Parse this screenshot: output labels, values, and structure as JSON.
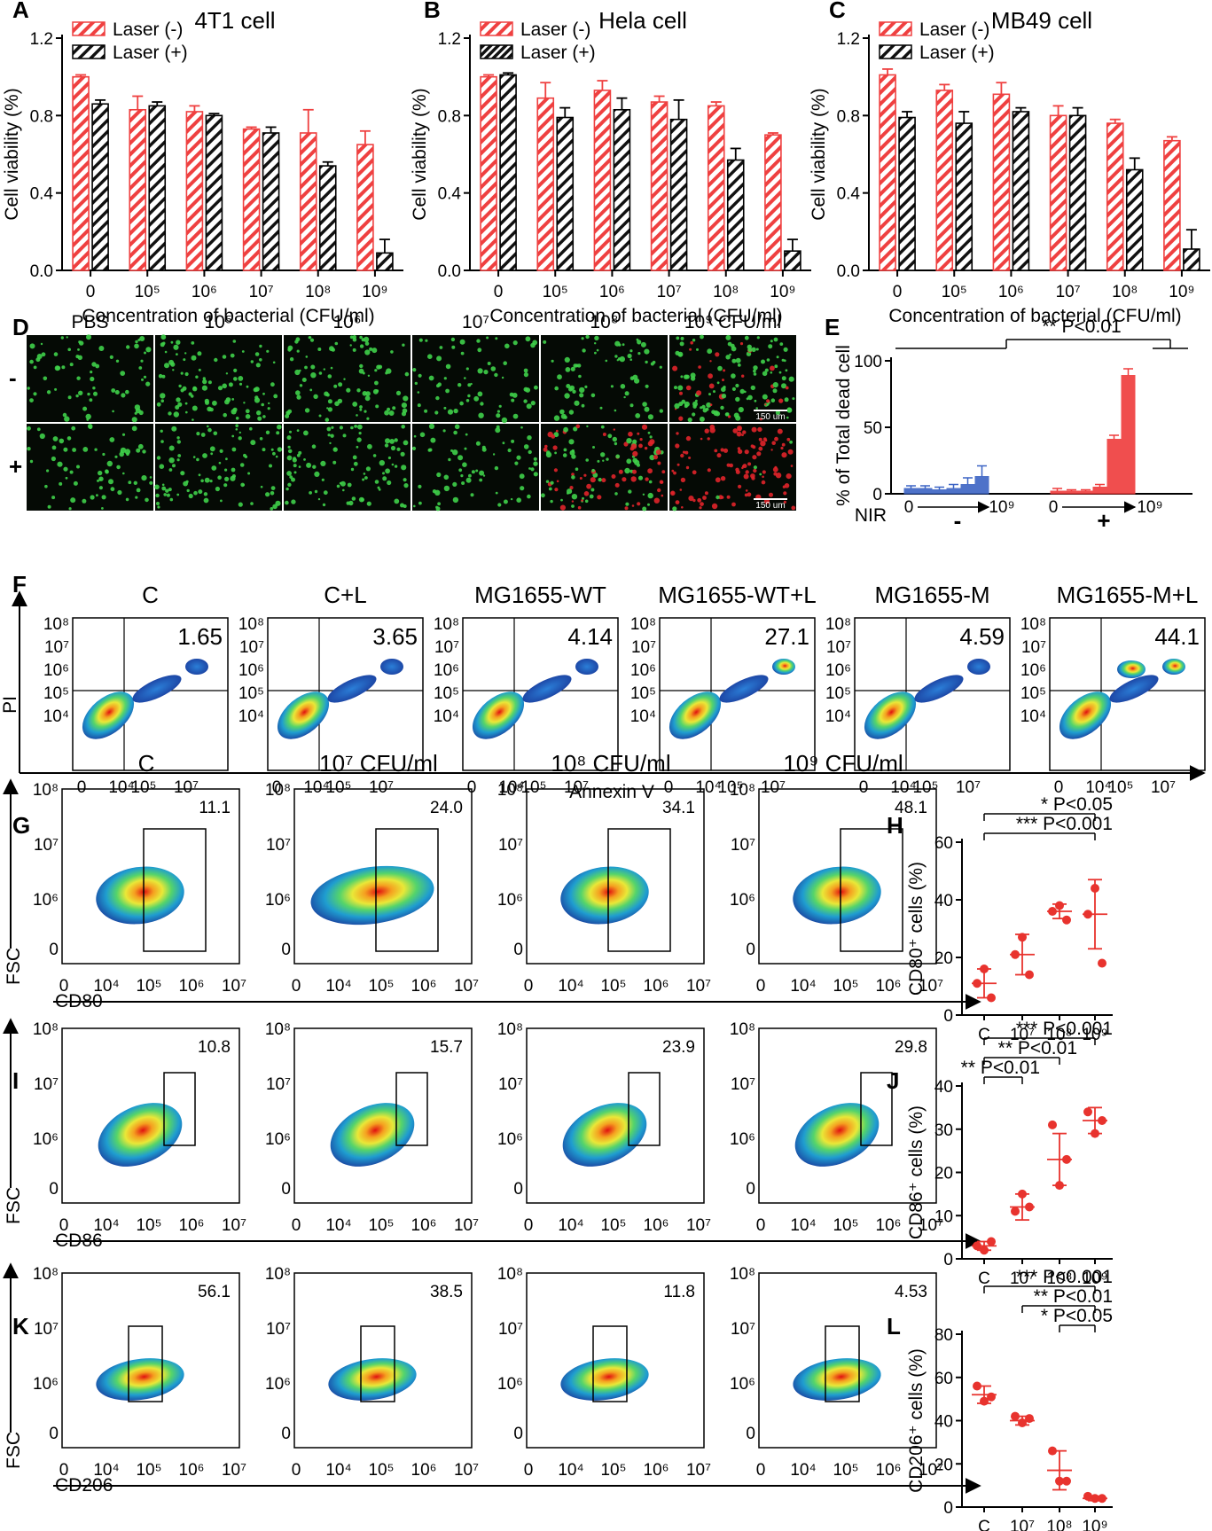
{
  "panel_letters": [
    "A",
    "B",
    "C",
    "D",
    "E",
    "F",
    "G",
    "H",
    "I",
    "J",
    "K",
    "L"
  ],
  "colors": {
    "laser_minus": "#ef4040",
    "laser_plus": "#000000",
    "nir_minus": "#3b63c4",
    "nir_plus": "#ef3b3b",
    "dot_red": "#e8332e",
    "green_cells": "#3fd04a",
    "red_cells": "#e0242a"
  },
  "panels_ABC": {
    "xlabel": "Concentration of bacterial (CFU/ml)",
    "ylabel": "Cell viability (%)",
    "xticks": [
      "0",
      "10⁵",
      "10⁶",
      "10⁷",
      "10⁸",
      "10⁹"
    ],
    "yticks": [
      "0.0",
      "0.4",
      "0.8",
      "1.2"
    ],
    "legend": [
      "Laser (-)",
      "Laser (+)"
    ]
  },
  "panel_D": {
    "columns": [
      "PBS",
      "10⁵",
      "10⁶",
      "10⁷",
      "10⁸",
      "10⁹ CFU/ml"
    ],
    "rows": [
      "-",
      "+"
    ],
    "scalebar": "150 um"
  },
  "panel_E": {
    "ylabel": "% of Total dead cell",
    "yticks": [
      "0",
      "50",
      "100"
    ],
    "nir_label": "NIR",
    "minus_sign": "-",
    "plus_sign": "+",
    "range_start": "0",
    "range_end": "10⁹",
    "sig": "** P<0.01"
  },
  "panel_F": {
    "xlabel": "Annexin V",
    "ylabel": "PI",
    "groups": [
      "C",
      "C+L",
      "MG1655-WT",
      "MG1655-WT+L",
      "MG1655-M",
      "MG1655-M+L"
    ],
    "values": [
      "1.65",
      "3.65",
      "4.14",
      "27.1",
      "4.59",
      "44.1"
    ],
    "yticks": [
      "10⁸",
      "10⁷",
      "10⁶",
      "10⁵",
      "10⁴"
    ],
    "xticks": [
      "0",
      "10⁴",
      "10⁵",
      "10⁷"
    ]
  },
  "panel_GIK": {
    "titles": [
      "C",
      "10⁷ CFU/ml",
      "10⁸ CFU/ml",
      "10⁹ CFU/ml"
    ],
    "ylabel": "FSC",
    "yticks": [
      "10⁸",
      "10⁷",
      "10⁶",
      "0"
    ],
    "xticks": [
      "0",
      "10⁴",
      "10⁵",
      "10⁶",
      "10⁷"
    ],
    "G_xlabel": "CD80",
    "I_xlabel": "CD86",
    "K_xlabel": "CD206",
    "G_values": [
      "11.1",
      "24.0",
      "34.1",
      "48.1"
    ],
    "I_values": [
      "10.8",
      "15.7",
      "23.9",
      "29.8"
    ],
    "K_values": [
      "56.1",
      "38.5",
      "11.8",
      "4.53"
    ]
  },
  "panel_HJL": {
    "xticks": [
      "C",
      "10⁷",
      "10⁸",
      "10⁹"
    ],
    "H_ylabel": "CD80⁺ cells (%)",
    "J_ylabel": "CD86⁺ cells (%)",
    "L_ylabel": "CD206⁺ cells (%)",
    "H_sig": [
      "* P<0.05",
      "*** P<0.001"
    ],
    "J_sig": [
      "*** P<0.001",
      "** P<0.01",
      "** P<0.01"
    ],
    "L_sig": [
      "*** P<0.001",
      "** P<0.01",
      "* P<0.05"
    ]
  },
  "chart_data": [
    {
      "type": "bar",
      "title": "4T1 cell",
      "categories": [
        "0",
        "10⁵",
        "10⁶",
        "10⁷",
        "10⁸",
        "10⁹"
      ],
      "xlabel": "Concentration of bacterial (CFU/ml)",
      "ylabel": "Cell viability (%)",
      "ylim": [
        0,
        1.2
      ],
      "legend": "top-left",
      "series": [
        {
          "name": "Laser (-)",
          "values": [
            1.0,
            0.83,
            0.82,
            0.73,
            0.71,
            0.65
          ],
          "errors": [
            0.01,
            0.07,
            0.03,
            0.01,
            0.12,
            0.07
          ]
        },
        {
          "name": "Laser (+)",
          "values": [
            0.86,
            0.85,
            0.8,
            0.71,
            0.54,
            0.09
          ],
          "errors": [
            0.02,
            0.02,
            0.01,
            0.03,
            0.02,
            0.07
          ]
        }
      ]
    },
    {
      "type": "bar",
      "title": "Hela cell",
      "categories": [
        "0",
        "10⁵",
        "10⁶",
        "10⁷",
        "10⁸",
        "10⁹"
      ],
      "xlabel": "Concentration of bacterial (CFU/ml)",
      "ylabel": "Cell viability (%)",
      "ylim": [
        0,
        1.2
      ],
      "legend": "top-left",
      "series": [
        {
          "name": "Laser (-)",
          "values": [
            1.0,
            0.89,
            0.93,
            0.87,
            0.85,
            0.7
          ],
          "errors": [
            0.01,
            0.08,
            0.05,
            0.03,
            0.02,
            0.01
          ]
        },
        {
          "name": "Laser (+)",
          "values": [
            1.01,
            0.79,
            0.83,
            0.78,
            0.57,
            0.1
          ],
          "errors": [
            0.01,
            0.05,
            0.06,
            0.1,
            0.06,
            0.06
          ]
        }
      ]
    },
    {
      "type": "bar",
      "title": "MB49 cell",
      "categories": [
        "0",
        "10⁵",
        "10⁶",
        "10⁷",
        "10⁸",
        "10⁹"
      ],
      "xlabel": "Concentration of bacterial (CFU/ml)",
      "ylabel": "Cell viability (%)",
      "ylim": [
        0,
        1.2
      ],
      "legend": "top-left",
      "series": [
        {
          "name": "Laser (-)",
          "values": [
            1.01,
            0.93,
            0.91,
            0.8,
            0.76,
            0.67
          ],
          "errors": [
            0.03,
            0.03,
            0.06,
            0.05,
            0.02,
            0.02
          ]
        },
        {
          "name": "Laser (+)",
          "values": [
            0.79,
            0.76,
            0.82,
            0.8,
            0.52,
            0.11
          ],
          "errors": [
            0.03,
            0.06,
            0.02,
            0.04,
            0.06,
            0.1
          ]
        }
      ]
    },
    {
      "type": "bar",
      "title": "",
      "ylabel": "% of Total dead cell",
      "ylim": [
        0,
        100
      ],
      "series": [
        {
          "name": "-",
          "values": [
            4,
            4,
            3,
            4,
            7,
            13
          ],
          "errors": [
            2,
            2,
            2,
            3,
            5,
            8
          ]
        },
        {
          "name": "+",
          "values": [
            2,
            2,
            2,
            5,
            41,
            89
          ],
          "errors": [
            2,
            1,
            1,
            2,
            3,
            5
          ]
        }
      ]
    },
    {
      "type": "scatter",
      "title": "",
      "ylabel": "CD80⁺ cells (%)",
      "categories": [
        "C",
        "10⁷",
        "10⁸",
        "10⁹"
      ],
      "ylim": [
        0,
        60
      ],
      "points": [
        [
          11,
          16,
          6
        ],
        [
          21,
          27,
          14
        ],
        [
          36,
          38,
          33
        ],
        [
          35,
          44,
          18
        ]
      ],
      "mean": [
        11,
        21,
        36,
        35
      ],
      "sd": [
        5,
        7,
        2.5,
        12
      ]
    },
    {
      "type": "scatter",
      "title": "",
      "ylabel": "CD86⁺ cells (%)",
      "categories": [
        "C",
        "10⁷",
        "10⁸",
        "10⁹"
      ],
      "ylim": [
        0,
        40
      ],
      "points": [
        [
          3,
          2,
          4
        ],
        [
          11,
          15,
          12
        ],
        [
          31,
          17,
          23
        ],
        [
          34,
          29,
          32
        ]
      ],
      "mean": [
        3,
        12,
        23,
        32
      ],
      "sd": [
        1,
        3,
        6,
        3
      ]
    },
    {
      "type": "scatter",
      "title": "",
      "ylabel": "CD206⁺ cells (%)",
      "categories": [
        "C",
        "10⁷",
        "10⁸",
        "10⁹"
      ],
      "ylim": [
        0,
        80
      ],
      "points": [
        [
          56,
          49,
          51
        ],
        [
          42,
          39,
          41
        ],
        [
          26,
          12,
          12
        ],
        [
          5,
          4,
          4
        ]
      ],
      "mean": [
        52,
        40,
        17,
        4
      ],
      "sd": [
        4,
        2,
        9,
        1
      ]
    }
  ]
}
